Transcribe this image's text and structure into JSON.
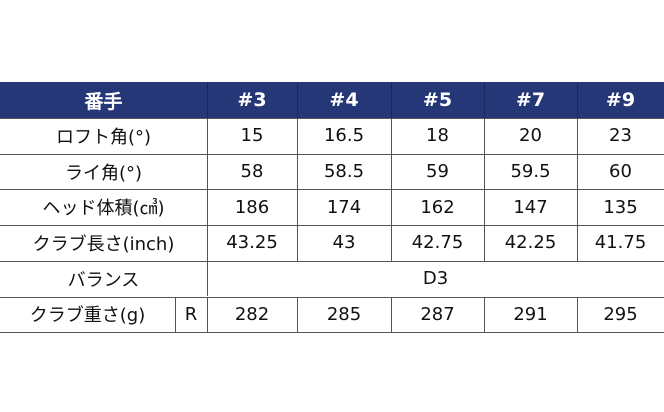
{
  "table": {
    "header": [
      "番手",
      "#3",
      "#4",
      "#5",
      "#7",
      "#9"
    ],
    "rows": [
      {
        "label": "ロフト角(°)",
        "values": [
          "15",
          "16.5",
          "18",
          "20",
          "23"
        ]
      },
      {
        "label": "ライ角(°)",
        "values": [
          "58",
          "58.5",
          "59",
          "59.5",
          "60"
        ]
      },
      {
        "label": "ヘッド体積(㎤)",
        "values": [
          "186",
          "174",
          "162",
          "147",
          "135"
        ]
      },
      {
        "label": "クラブ長さ(inch)",
        "values": [
          "43.25",
          "43",
          "42.75",
          "42.25",
          "41.75"
        ]
      },
      {
        "label": "バランス",
        "value": "D3"
      },
      {
        "label": "クラブ重さ(g)",
        "flex": "R",
        "values": [
          "282",
          "285",
          "287",
          "291",
          "295"
        ]
      }
    ]
  }
}
